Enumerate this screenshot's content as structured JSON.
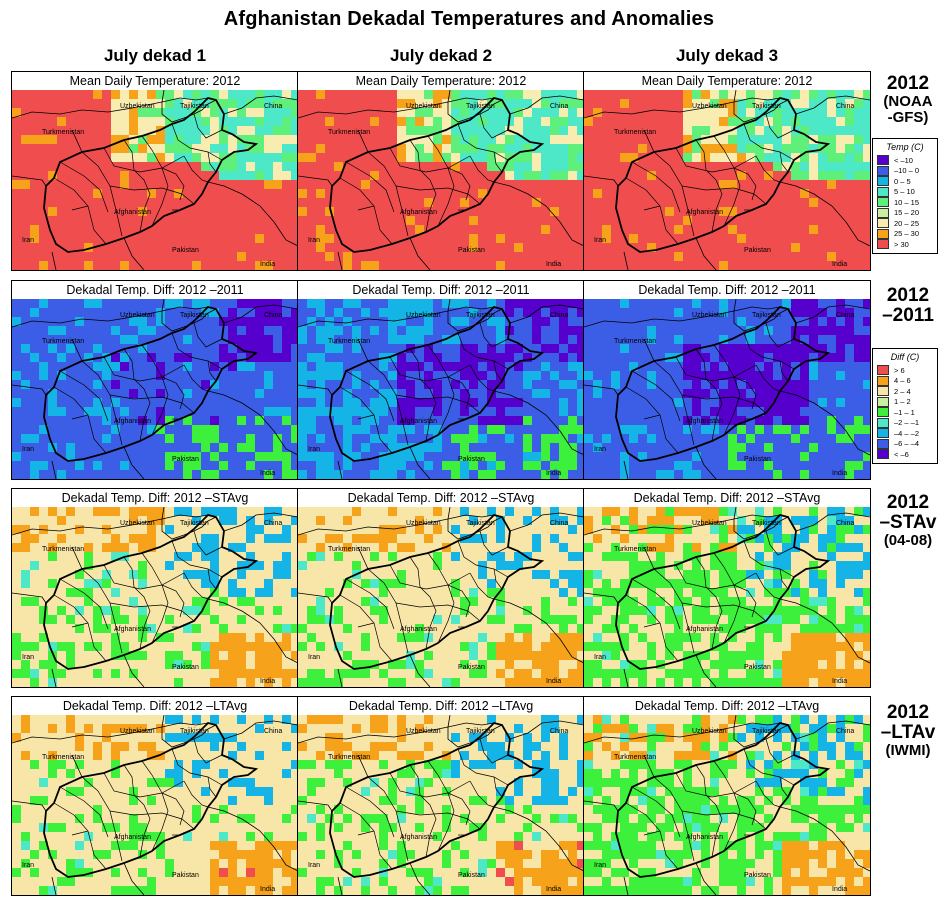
{
  "title": "Afghanistan Dekadal Temperatures and Anomalies",
  "columns": [
    "July dekad 1",
    "July dekad 2",
    "July dekad 3"
  ],
  "rows": [
    {
      "id": "temp",
      "panel_title": "Mean Daily Temperature: 2012",
      "label_lines": [
        "2012",
        "(NOAA",
        "-GFS)"
      ]
    },
    {
      "id": "y2011",
      "panel_title": "Dekadal Temp. Diff: 2012 –2011",
      "label_lines": [
        "2012",
        "–2011"
      ]
    },
    {
      "id": "stavg",
      "panel_title": "Dekadal Temp. Diff: 2012 –STAvg",
      "label_lines": [
        "2012",
        "–STAv",
        "(04-08)"
      ]
    },
    {
      "id": "ltavg",
      "panel_title": "Dekadal Temp. Diff: 2012 –LTAvg",
      "label_lines": [
        "2012",
        "–LTAv",
        "(IWMI)"
      ]
    }
  ],
  "map_labels": {
    "uzbekistan": "Uzbekistan",
    "tajikistan": "Tajikistan",
    "china": "China",
    "turkmenistan": "Turkmenistan",
    "afghanistan": "Afghanistan",
    "iran": "Iran",
    "pakistan": "Pakistan",
    "india": "India"
  },
  "legend_temp": {
    "title": "Temp (C)",
    "entries": [
      {
        "label": "< –10",
        "color": "#5500cc"
      },
      {
        "label": "–10 – 0",
        "color": "#3c5ee6"
      },
      {
        "label": "0 – 5",
        "color": "#14b4e6"
      },
      {
        "label": "5 – 10",
        "color": "#4de8c8"
      },
      {
        "label": "10 – 15",
        "color": "#5ef07a"
      },
      {
        "label": "15 – 20",
        "color": "#c8f0a0"
      },
      {
        "label": "20 – 25",
        "color": "#f8ecb0"
      },
      {
        "label": "25 – 30",
        "color": "#f7a21b"
      },
      {
        "label": "> 30",
        "color": "#f04e4e"
      }
    ]
  },
  "legend_diff": {
    "title": "Diff (C)",
    "entries": [
      {
        "label": "> 6",
        "color": "#f04e4e"
      },
      {
        "label": "4 – 6",
        "color": "#f7a21b"
      },
      {
        "label": "2 – 4",
        "color": "#f8e6a8"
      },
      {
        "label": "1 – 2",
        "color": "#c8f0a0"
      },
      {
        "label": "–1 – 1",
        "color": "#3cf03c"
      },
      {
        "label": "–2 – –1",
        "color": "#4de8c8"
      },
      {
        "label": "–4 – –2",
        "color": "#14b4e6"
      },
      {
        "label": "–6 – –4",
        "color": "#3c5ee6"
      },
      {
        "label": "< –6",
        "color": "#5500cc"
      }
    ]
  },
  "panel_fill": {
    "temp": {
      "dominant": "#f04e4e",
      "secondary": "#f7a21b",
      "tertiary": "#f8ecb0",
      "highland": "#4de8c8"
    },
    "y2011": {
      "dominant": "#3c5ee6",
      "secondary": "#14b4e6",
      "tertiary": "#3cf03c",
      "highland": "#5500cc"
    },
    "stavg": {
      "dominant": "#f8e6a8",
      "secondary": "#3cf03c",
      "tertiary": "#f7a21b",
      "highland": "#14b4e6"
    },
    "ltavg": {
      "dominant": "#f8e6a8",
      "secondary": "#3cf03c",
      "tertiary": "#f7a21b",
      "highland": "#14b4e6"
    }
  }
}
